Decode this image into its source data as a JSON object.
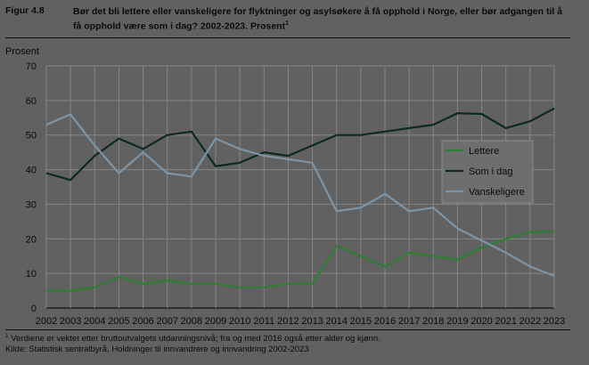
{
  "figure": {
    "number": "Figur 4.8",
    "title": "Bør det bli lettere eller vanskeligere for flyktninger og asylsøkere å få opphold i Norge, eller bør adgangen til å få opphold være som i dag? 2002-2023. Prosent",
    "title_sup": "1"
  },
  "footnote": {
    "sup": "1",
    "text": " Verdiene er vektet etter bruttoutvalgets utdanningsnivå; fra og med 2016 også etter alder og kjønn.",
    "source": "Kilde: Statistisk sentralbyrå, Holdninger til innvandrere og innvandring 2002-2023"
  },
  "chart_data": {
    "type": "line",
    "title": "",
    "xlabel": "",
    "ylabel": "Prosent",
    "ylim": [
      0,
      70
    ],
    "yticks": [
      0,
      10,
      20,
      30,
      40,
      50,
      60,
      70
    ],
    "grid": true,
    "legend_position": "right",
    "x": [
      "2002",
      "2003",
      "2004",
      "2005",
      "2006",
      "2007",
      "2008",
      "2009",
      "2010",
      "2011",
      "2012",
      "2013",
      "2014",
      "2015",
      "2016",
      "2017",
      "2018",
      "2019",
      "2020",
      "2021",
      "2022",
      "2023"
    ],
    "series": [
      {
        "name": "Lettere",
        "color": "#2e7d32",
        "values": [
          5,
          5,
          6,
          9,
          7,
          8,
          7,
          7,
          6,
          6,
          7,
          7,
          18,
          15,
          12,
          16,
          15,
          14,
          17.5,
          20,
          22,
          22.2
        ]
      },
      {
        "name": "Som i dag",
        "color": "#0d2b1c",
        "values": [
          39,
          37,
          44,
          49,
          46,
          50,
          51,
          41,
          42,
          45,
          44,
          47,
          50,
          50,
          51,
          52,
          53,
          56.3,
          56.1,
          52,
          54,
          57.7
        ]
      },
      {
        "name": "Vanskeligere",
        "color": "#7d94a6",
        "values": [
          53,
          56,
          47,
          39,
          45,
          39,
          38,
          49,
          46,
          44,
          43,
          42,
          28,
          29,
          33,
          28,
          29,
          23,
          19.5,
          16,
          12,
          9.3
        ]
      }
    ]
  }
}
